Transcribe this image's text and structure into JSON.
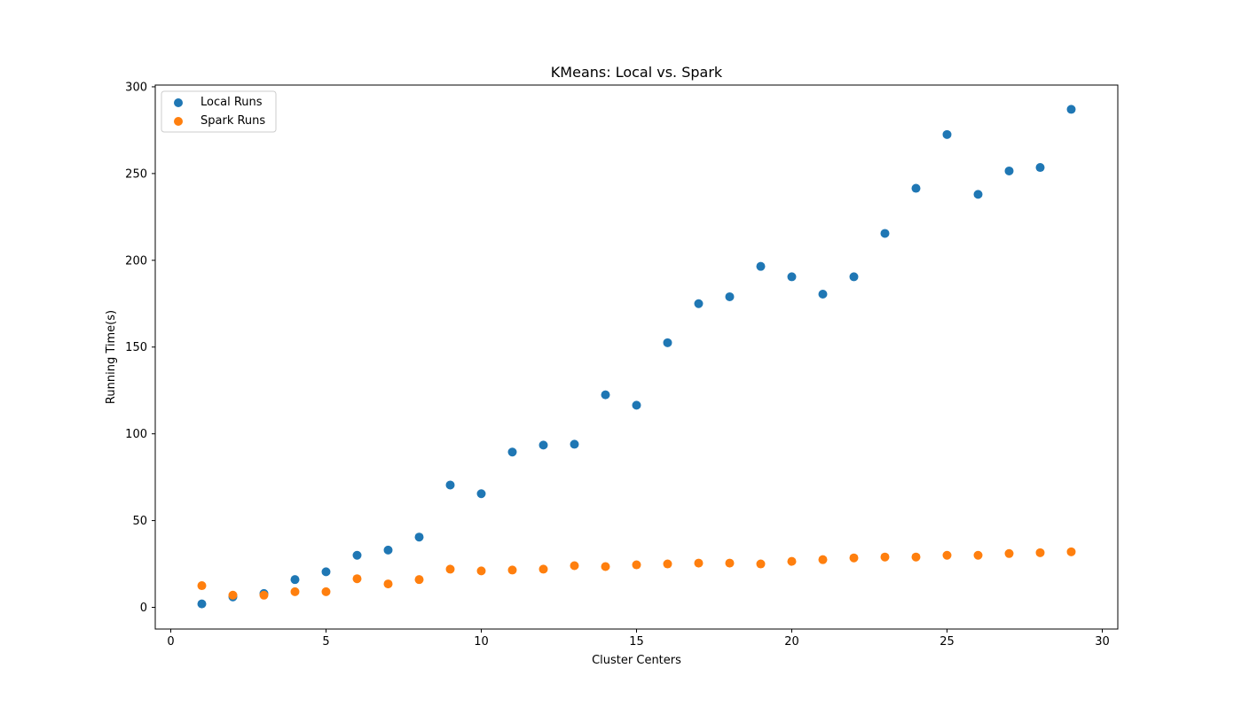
{
  "chart_data": {
    "type": "scatter",
    "title": "KMeans: Local vs. Spark",
    "xlabel": "Cluster Centers",
    "ylabel": "Running Time(s)",
    "xlim": [
      -0.5,
      30.5
    ],
    "ylim": [
      -12.5,
      301
    ],
    "xticks": [
      0,
      5,
      10,
      15,
      20,
      25,
      30
    ],
    "yticks": [
      0,
      50,
      100,
      150,
      200,
      250,
      300
    ],
    "grid": false,
    "legend_position": "top-left",
    "x": [
      1,
      2,
      3,
      4,
      5,
      6,
      7,
      8,
      9,
      10,
      11,
      12,
      13,
      14,
      15,
      16,
      17,
      18,
      19,
      20,
      21,
      22,
      23,
      24,
      25,
      26,
      27,
      28,
      29
    ],
    "series": [
      {
        "name": "Local Runs",
        "color": "#1f77b4",
        "values": [
          2,
          6,
          8,
          16,
          20.5,
          30,
          33,
          40.5,
          70.5,
          65.5,
          89.5,
          93.5,
          94,
          122.5,
          116.5,
          152.5,
          175,
          179,
          196.5,
          190.5,
          180.5,
          190.5,
          215.5,
          241.5,
          272.5,
          238,
          251.5,
          253.5,
          287
        ]
      },
      {
        "name": "Spark Runs",
        "color": "#ff7f0e",
        "values": [
          12.5,
          7,
          7,
          9,
          9,
          16.5,
          13.5,
          16,
          22,
          21,
          21.5,
          22,
          24,
          23.5,
          24.5,
          25,
          25.5,
          25.5,
          25,
          26.5,
          27.5,
          28.5,
          29,
          29,
          30,
          30,
          31,
          31.5,
          32
        ]
      }
    ]
  }
}
